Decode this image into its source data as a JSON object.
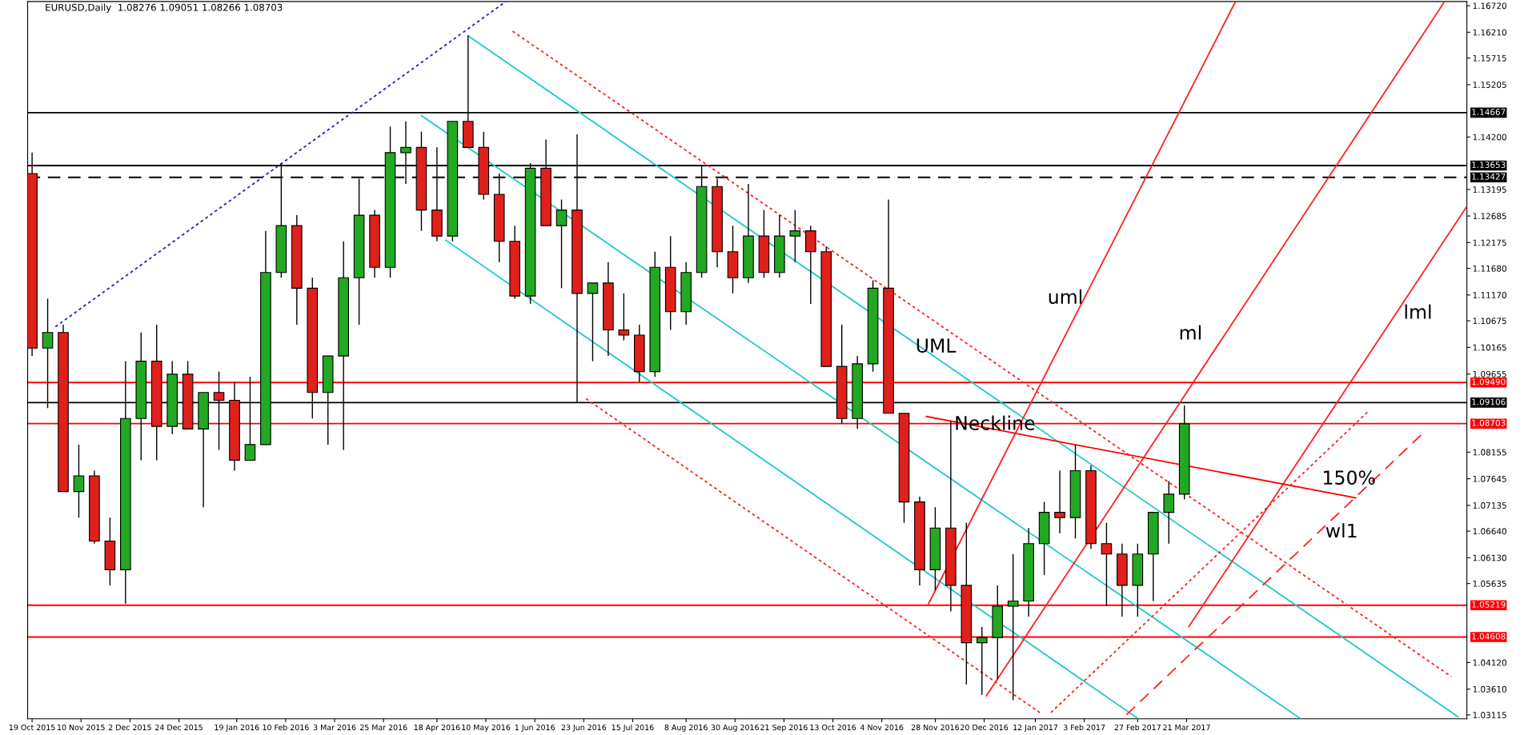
{
  "chart_data": {
    "type": "candlestick",
    "title": "EURUSD,Daily  1.08276 1.09051 1.08266 1.08703",
    "x": [
      "2015-10-19",
      "2015-10-26",
      "2015-11-02",
      "2015-11-09",
      "2015-11-16",
      "2015-11-23",
      "2015-11-30",
      "2015-12-07",
      "2015-12-14",
      "2015-12-21",
      "2015-12-28",
      "2016-01-04",
      "2016-01-11",
      "2016-01-18",
      "2016-01-25",
      "2016-02-01",
      "2016-02-08",
      "2016-02-15",
      "2016-02-22",
      "2016-02-29",
      "2016-03-07",
      "2016-03-14",
      "2016-03-21",
      "2016-03-28",
      "2016-04-04",
      "2016-04-11",
      "2016-04-18",
      "2016-04-25",
      "2016-05-02",
      "2016-05-09",
      "2016-05-16",
      "2016-05-23",
      "2016-05-30",
      "2016-06-06",
      "2016-06-13",
      "2016-06-20",
      "2016-06-27",
      "2016-07-04",
      "2016-07-11",
      "2016-07-18",
      "2016-07-25",
      "2016-08-01",
      "2016-08-08",
      "2016-08-15",
      "2016-08-22",
      "2016-08-29",
      "2016-09-05",
      "2016-09-12",
      "2016-09-19",
      "2016-09-26",
      "2016-10-03",
      "2016-10-10",
      "2016-10-17",
      "2016-10-24",
      "2016-10-31",
      "2016-11-07",
      "2016-11-14",
      "2016-11-21",
      "2016-11-28",
      "2016-12-05",
      "2016-12-12",
      "2016-12-19",
      "2016-12-26",
      "2017-01-02",
      "2017-01-09",
      "2017-01-16",
      "2017-01-23",
      "2017-01-30",
      "2017-02-06",
      "2017-02-13",
      "2017-02-20",
      "2017-02-27",
      "2017-03-06",
      "2017-03-13",
      "2017-03-20"
    ],
    "ohlc": [
      [
        1.135,
        1.139,
        1.1,
        1.1015
      ],
      [
        1.1015,
        1.111,
        1.09,
        1.1045
      ],
      [
        1.1045,
        1.106,
        1.074,
        1.074
      ],
      [
        1.074,
        1.083,
        1.069,
        1.077
      ],
      [
        1.077,
        1.078,
        1.064,
        1.0645
      ],
      [
        1.0645,
        1.069,
        1.056,
        1.059
      ],
      [
        1.059,
        1.099,
        1.0525,
        1.088
      ],
      [
        1.088,
        1.1045,
        1.08,
        1.099
      ],
      [
        1.099,
        1.106,
        1.08,
        1.0865
      ],
      [
        1.0865,
        1.099,
        1.085,
        1.0965
      ],
      [
        1.0965,
        1.099,
        1.086,
        1.086
      ],
      [
        1.086,
        1.093,
        1.071,
        1.093
      ],
      [
        1.093,
        1.097,
        1.082,
        1.0915
      ],
      [
        1.0915,
        1.095,
        1.078,
        1.08
      ],
      [
        1.08,
        1.096,
        1.08,
        1.083
      ],
      [
        1.083,
        1.124,
        1.083,
        1.116
      ],
      [
        1.116,
        1.137,
        1.115,
        1.125
      ],
      [
        1.125,
        1.127,
        1.106,
        1.113
      ],
      [
        1.113,
        1.115,
        1.088,
        1.093
      ],
      [
        1.093,
        1.1,
        1.083,
        1.1
      ],
      [
        1.1,
        1.122,
        1.082,
        1.115
      ],
      [
        1.115,
        1.134,
        1.106,
        1.127
      ],
      [
        1.127,
        1.128,
        1.115,
        1.117
      ],
      [
        1.117,
        1.144,
        1.115,
        1.139
      ],
      [
        1.139,
        1.145,
        1.133,
        1.14
      ],
      [
        1.14,
        1.143,
        1.124,
        1.128
      ],
      [
        1.128,
        1.14,
        1.122,
        1.123
      ],
      [
        1.123,
        1.145,
        1.122,
        1.145
      ],
      [
        1.145,
        1.1615,
        1.14,
        1.14
      ],
      [
        1.14,
        1.143,
        1.13,
        1.131
      ],
      [
        1.131,
        1.135,
        1.118,
        1.122
      ],
      [
        1.122,
        1.125,
        1.111,
        1.1115
      ],
      [
        1.1115,
        1.137,
        1.11,
        1.136
      ],
      [
        1.136,
        1.1415,
        1.125,
        1.125
      ],
      [
        1.125,
        1.13,
        1.113,
        1.128
      ],
      [
        1.128,
        1.1425,
        1.091,
        1.112
      ],
      [
        1.112,
        1.114,
        1.099,
        1.114
      ],
      [
        1.114,
        1.118,
        1.1,
        1.105
      ],
      [
        1.105,
        1.112,
        1.103,
        1.104
      ],
      [
        1.104,
        1.106,
        1.095,
        1.097
      ],
      [
        1.097,
        1.12,
        1.096,
        1.117
      ],
      [
        1.117,
        1.123,
        1.105,
        1.1085
      ],
      [
        1.1085,
        1.118,
        1.106,
        1.116
      ],
      [
        1.116,
        1.1365,
        1.115,
        1.1325
      ],
      [
        1.1325,
        1.134,
        1.117,
        1.12
      ],
      [
        1.12,
        1.125,
        1.112,
        1.115
      ],
      [
        1.115,
        1.133,
        1.114,
        1.123
      ],
      [
        1.123,
        1.128,
        1.115,
        1.116
      ],
      [
        1.116,
        1.127,
        1.115,
        1.123
      ],
      [
        1.123,
        1.128,
        1.118,
        1.124
      ],
      [
        1.124,
        1.125,
        1.11,
        1.12
      ],
      [
        1.12,
        1.121,
        1.098,
        1.098
      ],
      [
        1.098,
        1.106,
        1.087,
        1.088
      ],
      [
        1.088,
        1.1,
        1.086,
        1.0985
      ],
      [
        1.0985,
        1.1145,
        1.097,
        1.113
      ],
      [
        1.113,
        1.13,
        1.089,
        1.089
      ],
      [
        1.089,
        1.089,
        1.068,
        1.072
      ],
      [
        1.072,
        1.073,
        1.056,
        1.059
      ],
      [
        1.059,
        1.071,
        1.055,
        1.067
      ],
      [
        1.067,
        1.0875,
        1.051,
        1.056
      ],
      [
        1.056,
        1.068,
        1.037,
        1.045
      ],
      [
        1.045,
        1.048,
        1.035,
        1.046
      ],
      [
        1.046,
        1.056,
        1.038,
        1.052
      ],
      [
        1.052,
        1.062,
        1.034,
        1.053
      ],
      [
        1.053,
        1.067,
        1.05,
        1.064
      ],
      [
        1.064,
        1.072,
        1.058,
        1.07
      ],
      [
        1.07,
        1.078,
        1.066,
        1.069
      ],
      [
        1.069,
        1.083,
        1.065,
        1.078
      ],
      [
        1.078,
        1.079,
        1.063,
        1.064
      ],
      [
        1.064,
        1.068,
        1.052,
        1.062
      ],
      [
        1.062,
        1.064,
        1.05,
        1.056
      ],
      [
        1.056,
        1.064,
        1.05,
        1.062
      ],
      [
        1.062,
        1.07,
        1.053,
        1.07
      ],
      [
        1.07,
        1.076,
        1.064,
        1.0735
      ],
      [
        1.0735,
        1.0905,
        1.0725,
        1.087
      ]
    ],
    "colors": [
      "#e0201b",
      "#22a822",
      "#e0201b",
      "#22a822",
      "#e0201b",
      "#e0201b",
      "#22a822",
      "#22a822",
      "#e0201b",
      "#22a822",
      "#e0201b",
      "#22a822",
      "#e0201b",
      "#e0201b",
      "#22a822",
      "#22a822",
      "#22a822",
      "#e0201b",
      "#e0201b",
      "#22a822",
      "#22a822",
      "#22a822",
      "#e0201b",
      "#22a822",
      "#22a822",
      "#e0201b",
      "#e0201b",
      "#22a822",
      "#e0201b",
      "#e0201b",
      "#e0201b",
      "#e0201b",
      "#22a822",
      "#e0201b",
      "#22a822",
      "#e0201b",
      "#22a822",
      "#e0201b",
      "#e0201b",
      "#e0201b",
      "#22a822",
      "#e0201b",
      "#22a822",
      "#22a822",
      "#e0201b",
      "#e0201b",
      "#22a822",
      "#e0201b",
      "#22a822",
      "#22a822",
      "#e0201b",
      "#e0201b",
      "#e0201b",
      "#22a822",
      "#22a822",
      "#e0201b",
      "#e0201b",
      "#e0201b",
      "#22a822",
      "#e0201b",
      "#e0201b",
      "#22a822",
      "#22a822",
      "#22a822",
      "#22a822",
      "#22a822",
      "#e0201b",
      "#22a822",
      "#e0201b",
      "#e0201b",
      "#e0201b",
      "#22a822",
      "#22a822",
      "#22a822",
      "#22a822"
    ],
    "series": [
      {
        "type": "line",
        "x": [
          "2015-10-29T12:00",
          "2016-05-19"
        ],
        "values": [
          1.1056,
          1.168
        ],
        "color": "#2020c0",
        "line_style": "dotted"
      },
      {
        "type": "line",
        "x": [
          "2016-05-02",
          "2017-07-21"
        ],
        "values": [
          1.1614,
          1.0308
        ],
        "color": "#20c8c8",
        "line_style": "solid"
      },
      {
        "type": "line",
        "x": [
          "2016-04-11",
          "2017-05-11"
        ],
        "values": [
          1.1461,
          1.0305
        ],
        "color": "#20c8c8",
        "line_style": "solid"
      },
      {
        "type": "line",
        "x": [
          "2016-04-22",
          "2017-02-27"
        ],
        "values": [
          1.1222,
          1.0305
        ],
        "color": "#20c8c8",
        "line_style": "solid"
      },
      {
        "type": "line",
        "x": [
          "2016-05-22",
          "2017-07-18"
        ],
        "values": [
          1.1623,
          1.0385
        ],
        "color": "#ff2020",
        "line_style": "dotted"
      },
      {
        "type": "line",
        "x": [
          "2016-06-24",
          "2017-01-14"
        ],
        "values": [
          1.0918,
          1.0316
        ],
        "color": "#ff2020",
        "line_style": "dotted"
      },
      {
        "type": "line",
        "x": [
          "2017-01-19",
          "2017-06-11"
        ],
        "values": [
          1.0316,
          1.0895
        ],
        "color": "#ff2020",
        "line_style": "dotted"
      },
      {
        "type": "line",
        "x": [
          "2016-11-25",
          "2017-04-12"
        ],
        "values": [
          1.0525,
          1.168
        ],
        "color": "#ff2020",
        "line_style": "solid"
      },
      {
        "type": "line",
        "x": [
          "2016-12-21",
          "2017-07-15"
        ],
        "values": [
          1.0348,
          1.168
        ],
        "color": "#ff2020",
        "line_style": "solid"
      },
      {
        "type": "line",
        "x": [
          "2017-03-22",
          "2017-07-25"
        ],
        "values": [
          1.0481,
          1.1287
        ],
        "color": "#ff2020",
        "line_style": "solid"
      },
      {
        "type": "line",
        "x": [
          "2017-02-22",
          "2017-07-06"
        ],
        "values": [
          1.0312,
          1.0855
        ],
        "color": "#ff2020",
        "line_style": "dashed"
      },
      {
        "type": "line",
        "x": [
          "2016-11-24",
          "2017-06-05"
        ],
        "values": [
          1.0884,
          1.0728
        ],
        "color": "#ff0000",
        "line_style": "solid"
      }
    ],
    "ref_lines": [
      {
        "axis": "y",
        "value": 1.14667,
        "label": "1.14667",
        "color": "#000000",
        "line_style": "solid"
      },
      {
        "axis": "y",
        "value": 1.13653,
        "label": "1.13653",
        "color": "#000000",
        "line_style": "solid"
      },
      {
        "axis": "y",
        "value": 1.13427,
        "label": "1.13427",
        "color": "#000000",
        "line_style": "dashed"
      },
      {
        "axis": "y",
        "value": 1.0949,
        "label": "1.09490",
        "color": "#ff0000",
        "line_style": "solid"
      },
      {
        "axis": "y",
        "value": 1.09106,
        "label": "1.09106",
        "color": "#000000",
        "line_style": "solid"
      },
      {
        "axis": "y",
        "value": 1.08703,
        "label": "1.08703",
        "color": "#ff0000",
        "line_style": "solid"
      },
      {
        "axis": "y",
        "value": 1.05219,
        "label": "1.05219",
        "color": "#ff0000",
        "line_style": "solid"
      },
      {
        "axis": "y",
        "value": 1.04608,
        "label": "1.04608",
        "color": "#ff0000",
        "line_style": "solid"
      }
    ],
    "annotations": [
      "UML",
      "uml",
      "ml",
      "lml",
      "Neckline",
      "150%",
      "wl1"
    ],
    "xlim": [
      "2015-10-17",
      "2017-07-25"
    ],
    "xticks": [
      {
        "value": "2015-10-19",
        "label": "19 Oct 2015"
      },
      {
        "value": "2015-11-10",
        "label": "10 Nov 2015"
      },
      {
        "value": "2015-12-02",
        "label": "2 Dec 2015"
      },
      {
        "value": "2015-12-24",
        "label": "24 Dec 2015"
      },
      {
        "value": "2016-01-19",
        "label": "19 Jan 2016"
      },
      {
        "value": "2016-02-10",
        "label": "10 Feb 2016"
      },
      {
        "value": "2016-03-03",
        "label": "3 Mar 2016"
      },
      {
        "value": "2016-03-25",
        "label": "25 Mar 2016"
      },
      {
        "value": "2016-04-18",
        "label": "18 Apr 2016"
      },
      {
        "value": "2016-05-10",
        "label": "10 May 2016"
      },
      {
        "value": "2016-06-01",
        "label": "1 Jun 2016"
      },
      {
        "value": "2016-06-23",
        "label": "23 Jun 2016"
      },
      {
        "value": "2016-07-15",
        "label": "15 Jul 2016"
      },
      {
        "value": "2016-08-08",
        "label": "8 Aug 2016"
      },
      {
        "value": "2016-08-30",
        "label": "30 Aug 2016"
      },
      {
        "value": "2016-09-21",
        "label": "21 Sep 2016"
      },
      {
        "value": "2016-10-13",
        "label": "13 Oct 2016"
      },
      {
        "value": "2016-11-04",
        "label": "4 Nov 2016"
      },
      {
        "value": "2016-11-28",
        "label": "28 Nov 2016"
      },
      {
        "value": "2016-12-20",
        "label": "20 Dec 2016"
      },
      {
        "value": "2017-01-12",
        "label": "12 Jan 2017"
      },
      {
        "value": "2017-02-03",
        "label": "3 Feb 2017"
      },
      {
        "value": "2017-02-27",
        "label": "27 Feb 2017"
      },
      {
        "value": "2017-03-21",
        "label": "21 Mar 2017"
      }
    ],
    "ylim": [
      1.0304,
      1.168
    ],
    "yticks": [
      {
        "value": 1.03115,
        "label": "1.03115"
      },
      {
        "value": 1.0361,
        "label": "1.03610"
      },
      {
        "value": 1.0412,
        "label": "1.04120"
      },
      {
        "value": 1.05635,
        "label": "1.05635"
      },
      {
        "value": 1.0613,
        "label": "1.06130"
      },
      {
        "value": 1.0664,
        "label": "1.06640"
      },
      {
        "value": 1.07135,
        "label": "1.07135"
      },
      {
        "value": 1.07645,
        "label": "1.07645"
      },
      {
        "value": 1.08155,
        "label": "1.08155"
      },
      {
        "value": 1.09655,
        "label": "1.09655"
      },
      {
        "value": 1.10165,
        "label": "1.10165"
      },
      {
        "value": 1.10675,
        "label": "1.10675"
      },
      {
        "value": 1.1117,
        "label": "1.11170"
      },
      {
        "value": 1.1168,
        "label": "1.11680"
      },
      {
        "value": 1.12175,
        "label": "1.12175"
      },
      {
        "value": 1.12685,
        "label": "1.12685"
      },
      {
        "value": 1.13195,
        "label": "1.13195"
      },
      {
        "value": 1.142,
        "label": "1.14200"
      },
      {
        "value": 1.15205,
        "label": "1.15205"
      },
      {
        "value": 1.15715,
        "label": "1.15715"
      },
      {
        "value": 1.1621,
        "label": "1.16210"
      },
      {
        "value": 1.1672,
        "label": "1.16720"
      }
    ],
    "grid": false
  }
}
